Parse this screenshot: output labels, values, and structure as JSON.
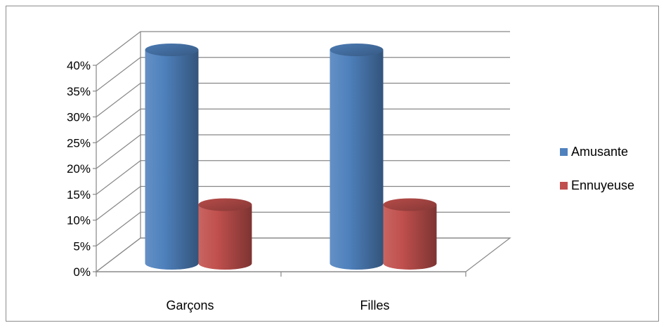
{
  "chart_data": {
    "type": "bar",
    "style": "3d-cylinder",
    "categories": [
      "Garçons",
      "Filles"
    ],
    "series": [
      {
        "name": "Amusante",
        "values": [
          40,
          40
        ],
        "color": "#4F81BD"
      },
      {
        "name": "Ennuyeuse",
        "values": [
          10,
          10
        ],
        "color": "#C0504D"
      }
    ],
    "ylim": [
      0,
      40
    ],
    "yticks": [
      "0%",
      "5%",
      "10%",
      "15%",
      "20%",
      "25%",
      "30%",
      "35%",
      "40%"
    ],
    "grid": true,
    "legend_position": "right"
  }
}
